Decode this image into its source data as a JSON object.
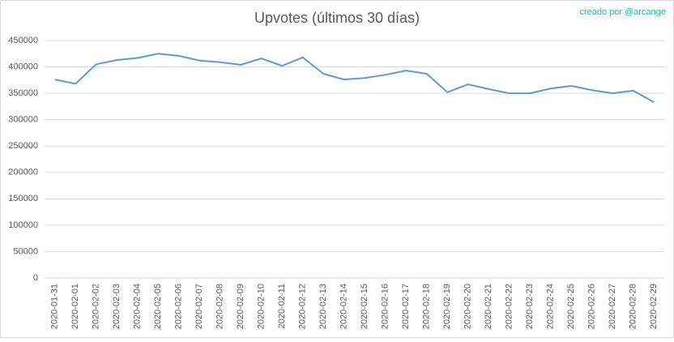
{
  "chart_data": {
    "type": "line",
    "title": "Upvotes (últimos 30 días)",
    "credit": "creado por @arcange",
    "categories": [
      "2020-01-31",
      "2020-02-01",
      "2020-02-02",
      "2020-02-03",
      "2020-02-04",
      "2020-02-05",
      "2020-02-06",
      "2020-02-07",
      "2020-02-08",
      "2020-02-09",
      "2020-02-10",
      "2020-02-11",
      "2020-02-12",
      "2020-02-13",
      "2020-02-14",
      "2020-02-15",
      "2020-02-16",
      "2020-02-17",
      "2020-02-18",
      "2020-02-19",
      "2020-02-20",
      "2020-02-21",
      "2020-02-22",
      "2020-02-23",
      "2020-02-24",
      "2020-02-25",
      "2020-02-26",
      "2020-02-27",
      "2020-02-28",
      "2020-02-29"
    ],
    "values": [
      376000,
      368000,
      405000,
      413000,
      417000,
      425000,
      421000,
      412000,
      409000,
      404000,
      416000,
      402000,
      418000,
      387000,
      376000,
      379000,
      385000,
      393000,
      387000,
      352000,
      367000,
      358000,
      350000,
      350000,
      359000,
      364000,
      356000,
      350000,
      355000,
      333000
    ],
    "color": "#5b9bd5",
    "ylim": [
      0,
      450000
    ],
    "yticks": [
      0,
      50000,
      100000,
      150000,
      200000,
      250000,
      300000,
      350000,
      400000,
      450000
    ],
    "grid": true
  }
}
